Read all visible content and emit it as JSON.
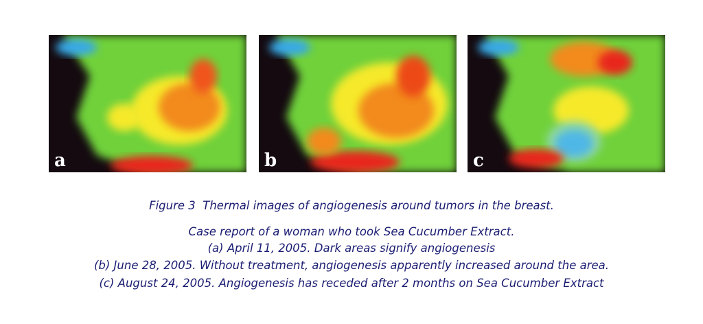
{
  "figure": {
    "panels": [
      {
        "label": "a"
      },
      {
        "label": "b"
      },
      {
        "label": "c"
      }
    ],
    "caption": {
      "title": "Figure 3  Thermal images of angiogenesis around tumors in the breast.",
      "lines": [
        "Case report of a woman who took Sea Cucumber Extract.",
        "(a) April 11, 2005. Dark areas signify angiogenesis",
        "(b) June 28, 2005. Without treatment, angiogenesis apparently increased around the area.",
        "(c) August 24, 2005. Angiogenesis has receded after 2 months on Sea Cucumber Extract"
      ]
    }
  }
}
